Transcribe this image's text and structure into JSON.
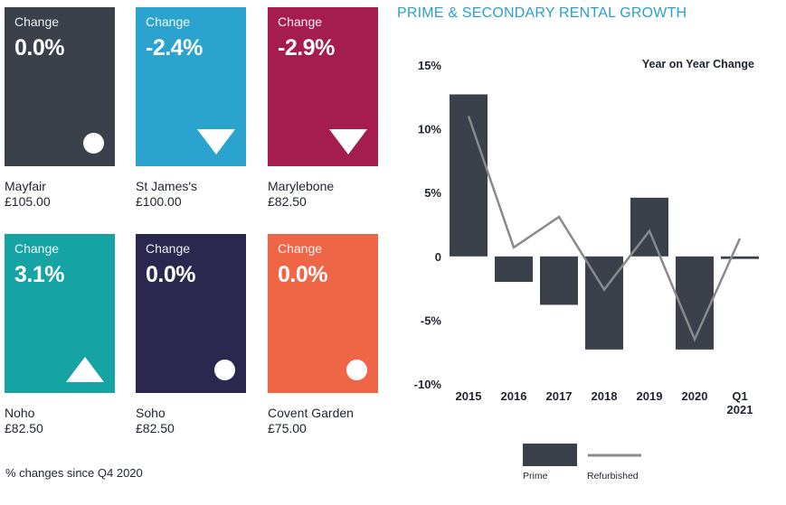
{
  "tiles": [
    {
      "change_label": "Change",
      "value": "0.0%",
      "name": "Mayfair",
      "price": "£105.00",
      "color": "#3a414b",
      "indicator": "circle"
    },
    {
      "change_label": "Change",
      "value": "-2.4%",
      "name": "St James's",
      "price": "£100.00",
      "color": "#2ba3cf",
      "indicator": "down-triangle"
    },
    {
      "change_label": "Change",
      "value": "-2.9%",
      "name": "Marylebone",
      "price": "£82.50",
      "color": "#a51c4e",
      "indicator": "down-triangle"
    },
    {
      "change_label": "Change",
      "value": "3.1%",
      "name": "Noho",
      "price": "£82.50",
      "color": "#16a3a3",
      "indicator": "up-triangle"
    },
    {
      "change_label": "Change",
      "value": "0.0%",
      "name": "Soho",
      "price": "£82.50",
      "color": "#2b2850",
      "indicator": "circle"
    },
    {
      "change_label": "Change",
      "value": "0.0%",
      "name": "Covent Garden",
      "price": "£75.00",
      "color": "#ee6645",
      "indicator": "circle"
    }
  ],
  "footnote": "% changes since Q4 2020",
  "chart_data": {
    "type": "bar",
    "title": "PRIME & SECONDARY RENTAL GROWTH",
    "subtitle": "Year on Year Change",
    "categories": [
      "2015",
      "2016",
      "2017",
      "2018",
      "2019",
      "2020",
      "Q1 2021"
    ],
    "category_lines": [
      [
        "2015"
      ],
      [
        "2016"
      ],
      [
        "2017"
      ],
      [
        "2018"
      ],
      [
        "2019"
      ],
      [
        "2020"
      ],
      [
        "Q1",
        "2021"
      ]
    ],
    "series": [
      {
        "name": "Prime",
        "kind": "bar",
        "color": "#3a414b",
        "values": [
          12.7,
          -2.0,
          -3.8,
          -7.3,
          4.6,
          -7.3,
          -0.2
        ]
      },
      {
        "name": "Refurbished",
        "kind": "line",
        "color": "#8a8a8a",
        "values": [
          11.0,
          0.7,
          3.1,
          -2.6,
          2.0,
          -6.5,
          1.4
        ]
      }
    ],
    "ylim": [
      -10,
      15
    ],
    "yticks": [
      15,
      10,
      5,
      0,
      -5,
      -10
    ],
    "ytick_labels": [
      "15%",
      "10%",
      "5%",
      "0",
      "-5%",
      "-10%"
    ],
    "grid": false,
    "legend_position": "bottom"
  }
}
